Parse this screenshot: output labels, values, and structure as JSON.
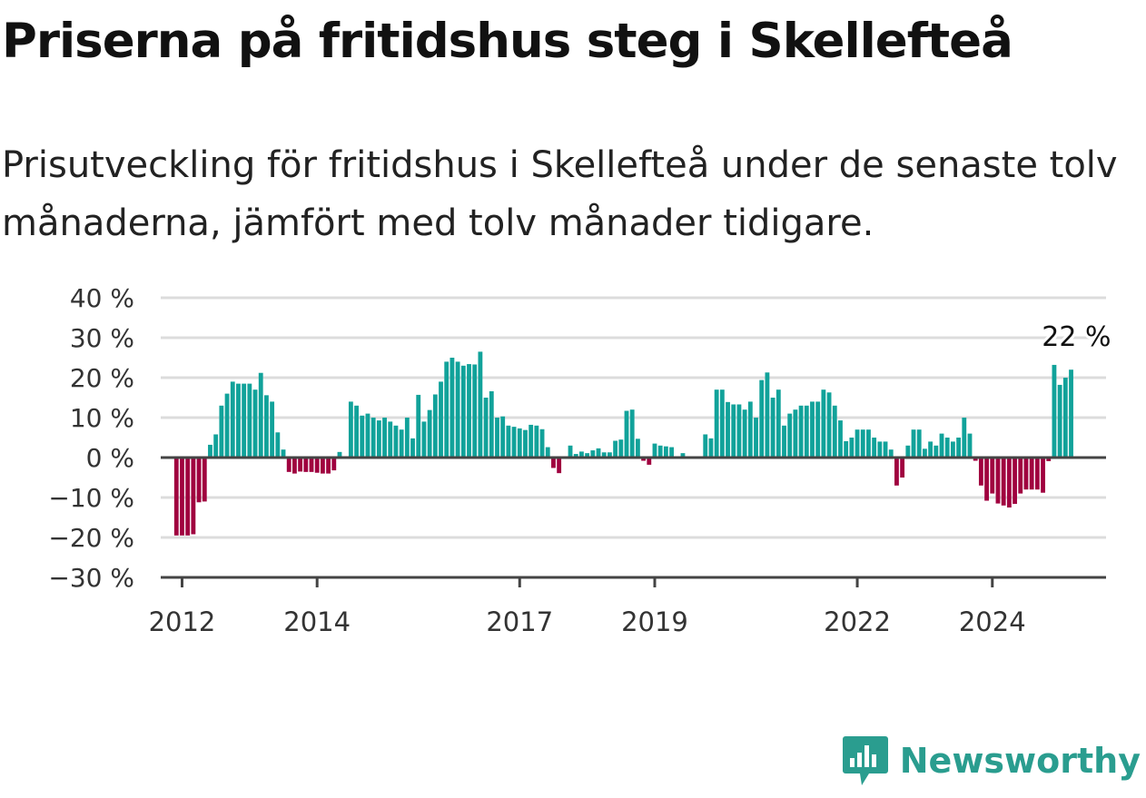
{
  "header": {
    "title": "Priserna på fritidshus steg i Skellefteå",
    "subtitle": "Prisutveckling för fritidshus i Skellefteå under de senaste tolv månaderna, jämfört med tolv månader tidigare."
  },
  "brand": {
    "name": "Newsworthy",
    "icon": "bar-chart-speech-bubble-icon",
    "color": "#2a9d8f"
  },
  "colors": {
    "positive": "#11a29a",
    "negative": "#a0003f",
    "grid": "#dcdcdc",
    "axis": "#444444"
  },
  "chart_data": {
    "type": "bar",
    "title": "Priserna på fritidshus steg i Skellefteå",
    "subtitle": "Prisutveckling för fritidshus i Skellefteå under de senaste tolv månaderna, jämfört med tolv månader tidigare.",
    "xlabel": "",
    "ylabel": "",
    "ylim": [
      -30,
      40
    ],
    "y_ticks": [
      40,
      30,
      20,
      10,
      0,
      -10,
      -20,
      -30
    ],
    "y_tick_labels": [
      "40 %",
      "30 %",
      "20 %",
      "10 %",
      "0 %",
      "−10 %",
      "−20 %",
      "−30 %"
    ],
    "x_start": "2011-12",
    "frequency": "monthly",
    "x_ticks": [
      "2012",
      "2014",
      "2017",
      "2019",
      "2022",
      "2024"
    ],
    "last_value_label": "22 %",
    "grid": true,
    "legend": false,
    "values": [
      -19.5,
      -19.5,
      -19.5,
      -19.2,
      -11.2,
      -11.0,
      3.2,
      5.8,
      13,
      16,
      19,
      18.5,
      18.5,
      18.5,
      17,
      21.2,
      15.6,
      14,
      6.3,
      2,
      -3.6,
      -4,
      -3.5,
      -3.6,
      -3.6,
      -3.8,
      -4,
      -4,
      -3.2,
      1.4,
      0,
      14,
      13,
      10.5,
      11,
      10,
      9.3,
      10,
      9,
      8,
      7,
      10,
      4.8,
      15.7,
      9,
      11.9,
      15.8,
      19,
      24,
      25,
      24,
      23,
      23.4,
      23.3,
      26.5,
      15,
      16.6,
      10,
      10.3,
      8,
      7.7,
      7.3,
      6.9,
      8.2,
      8,
      7.1,
      2.6,
      -2.6,
      -3.9,
      0,
      3,
      0.9,
      1.5,
      1.1,
      1.8,
      2.3,
      1.3,
      1.3,
      4.2,
      4.5,
      11.7,
      12,
      4.7,
      -0.8,
      -1.8,
      3.5,
      3,
      2.8,
      2.6,
      0,
      1.1,
      0,
      0,
      0,
      5.8,
      4.8,
      17,
      17,
      13.9,
      13.3,
      13.3,
      12,
      14,
      10,
      19.4,
      21.3,
      15,
      17,
      8,
      11,
      12,
      13,
      13,
      14,
      14,
      17,
      16.3,
      13,
      9.3,
      4.1,
      5,
      7,
      7,
      7,
      5,
      4,
      4,
      2,
      -7,
      -5,
      3,
      7,
      7,
      2.2,
      4,
      3,
      6,
      5,
      4,
      5,
      10,
      6,
      -0.8,
      -7,
      -10.8,
      -9,
      -11.5,
      -12,
      -12.5,
      -11.6,
      -9,
      -8,
      -8,
      -8,
      -8.8,
      -0.9,
      23.2,
      18.2,
      20,
      22
    ]
  }
}
